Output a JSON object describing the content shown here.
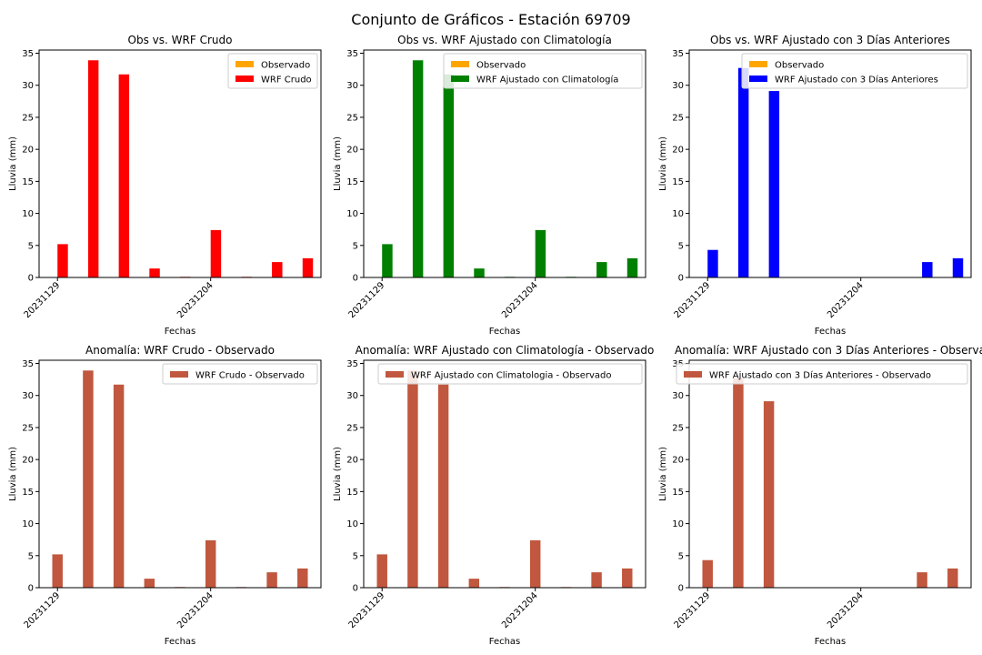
{
  "figure_title": "Conjunto de Gráficos - Estación 69709",
  "colors": {
    "observado": "#ffa500",
    "wrf_crudo": "#ff0000",
    "wrf_clim": "#008000",
    "wrf_3dias": "#0000ff",
    "anomalia": "#c0573e"
  },
  "chart_data": [
    {
      "type": "bar",
      "title": "Obs vs. WRF Crudo",
      "xlabel": "Fechas",
      "ylabel": "Lluvia (mm)",
      "ylim": [
        0,
        35.5
      ],
      "yticks": [
        0,
        5,
        10,
        15,
        20,
        25,
        30,
        35
      ],
      "x": [
        "20231129",
        "20231130",
        "20231201",
        "20231202",
        "20231203",
        "20231204",
        "20231205",
        "20231206",
        "20231207"
      ],
      "xtick_labels": [
        {
          "x": "20231129",
          "label": "20231129"
        },
        {
          "x": "20231204",
          "label": "20231204"
        }
      ],
      "legend_position": "top-right",
      "series": [
        {
          "name": "Observado",
          "color_key": "observado",
          "values": [
            0,
            0,
            0,
            0,
            0,
            0,
            0,
            0,
            0
          ]
        },
        {
          "name": "WRF Crudo",
          "color_key": "wrf_crudo",
          "values": [
            5.2,
            33.9,
            31.7,
            1.4,
            0.1,
            7.4,
            0.1,
            2.4,
            3.0
          ]
        }
      ]
    },
    {
      "type": "bar",
      "title": "Obs vs. WRF Ajustado con Climatología",
      "xlabel": "Fechas",
      "ylabel": "Lluvia (mm)",
      "ylim": [
        0,
        35.5
      ],
      "yticks": [
        0,
        5,
        10,
        15,
        20,
        25,
        30,
        35
      ],
      "x": [
        "20231129",
        "20231130",
        "20231201",
        "20231202",
        "20231203",
        "20231204",
        "20231205",
        "20231206",
        "20231207"
      ],
      "xtick_labels": [
        {
          "x": "20231129",
          "label": "20231129"
        },
        {
          "x": "20231204",
          "label": "20231204"
        }
      ],
      "legend_position": "top-right",
      "series": [
        {
          "name": "Observado",
          "color_key": "observado",
          "values": [
            0,
            0,
            0,
            0,
            0,
            0,
            0,
            0,
            0
          ]
        },
        {
          "name": "WRF Ajustado con Climatología",
          "color_key": "wrf_clim",
          "values": [
            5.2,
            33.9,
            31.7,
            1.4,
            0.1,
            7.4,
            0.1,
            2.4,
            3.0
          ]
        }
      ]
    },
    {
      "type": "bar",
      "title": "Obs vs. WRF Ajustado con 3 Días Anteriores",
      "xlabel": "Fechas",
      "ylabel": "Lluvia (mm)",
      "ylim": [
        0,
        35.5
      ],
      "yticks": [
        0,
        5,
        10,
        15,
        20,
        25,
        30,
        35
      ],
      "x": [
        "20231129",
        "20231130",
        "20231201",
        "20231202",
        "20231203",
        "20231204",
        "20231205",
        "20231206",
        "20231207"
      ],
      "xtick_labels": [
        {
          "x": "20231129",
          "label": "20231129"
        },
        {
          "x": "20231204",
          "label": "20231204"
        }
      ],
      "legend_position": "top-right",
      "series": [
        {
          "name": "Observado",
          "color_key": "observado",
          "values": [
            0,
            0,
            0,
            0,
            0,
            0,
            0,
            0,
            0
          ]
        },
        {
          "name": "WRF Ajustado con 3 Días Anteriores",
          "color_key": "wrf_3dias",
          "values": [
            4.3,
            32.7,
            29.1,
            0,
            0,
            0,
            0,
            2.4,
            3.0
          ]
        }
      ]
    },
    {
      "type": "bar",
      "title": "Anomalía: WRF Crudo - Observado",
      "xlabel": "Fechas",
      "ylabel": "Lluvia (mm)",
      "ylim": [
        0,
        35.5
      ],
      "yticks": [
        0,
        5,
        10,
        15,
        20,
        25,
        30,
        35
      ],
      "x": [
        "20231129",
        "20231130",
        "20231201",
        "20231202",
        "20231203",
        "20231204",
        "20231205",
        "20231206",
        "20231207"
      ],
      "xtick_labels": [
        {
          "x": "20231129",
          "label": "20231129"
        },
        {
          "x": "20231204",
          "label": "20231204"
        }
      ],
      "legend_position": "top-right",
      "series": [
        {
          "name": "WRF Crudo - Observado",
          "color_key": "anomalia",
          "values": [
            5.2,
            33.9,
            31.7,
            1.4,
            0.1,
            7.4,
            0.1,
            2.4,
            3.0
          ]
        }
      ]
    },
    {
      "type": "bar",
      "title": "Anomalía: WRF Ajustado con Climatología - Observado",
      "xlabel": "Fechas",
      "ylabel": "Lluvia (mm)",
      "ylim": [
        0,
        35.5
      ],
      "yticks": [
        0,
        5,
        10,
        15,
        20,
        25,
        30,
        35
      ],
      "x": [
        "20231129",
        "20231130",
        "20231201",
        "20231202",
        "20231203",
        "20231204",
        "20231205",
        "20231206",
        "20231207"
      ],
      "xtick_labels": [
        {
          "x": "20231129",
          "label": "20231129"
        },
        {
          "x": "20231204",
          "label": "20231204"
        }
      ],
      "legend_position": "top-right",
      "series": [
        {
          "name": "WRF Ajustado con Climatologia - Observado",
          "color_key": "anomalia",
          "values": [
            5.2,
            33.9,
            31.7,
            1.4,
            0.1,
            7.4,
            0.1,
            2.4,
            3.0
          ]
        }
      ]
    },
    {
      "type": "bar",
      "title": "Anomalía: WRF Ajustado con 3 Días Anteriores - Observa",
      "xlabel": "Fechas",
      "ylabel": "Lluvia (mm)",
      "ylim": [
        0,
        35.5
      ],
      "yticks": [
        0,
        5,
        10,
        15,
        20,
        25,
        30,
        35
      ],
      "x": [
        "20231129",
        "20231130",
        "20231201",
        "20231202",
        "20231203",
        "20231204",
        "20231205",
        "20231206",
        "20231207"
      ],
      "xtick_labels": [
        {
          "x": "20231129",
          "label": "20231129"
        },
        {
          "x": "20231204",
          "label": "20231204"
        }
      ],
      "legend_position": "top-right",
      "series": [
        {
          "name": "WRF Ajustado con 3 Días Anteriores - Observado",
          "color_key": "anomalia",
          "values": [
            4.3,
            32.7,
            29.1,
            0,
            0,
            0,
            0,
            2.4,
            3.0
          ]
        }
      ]
    }
  ]
}
